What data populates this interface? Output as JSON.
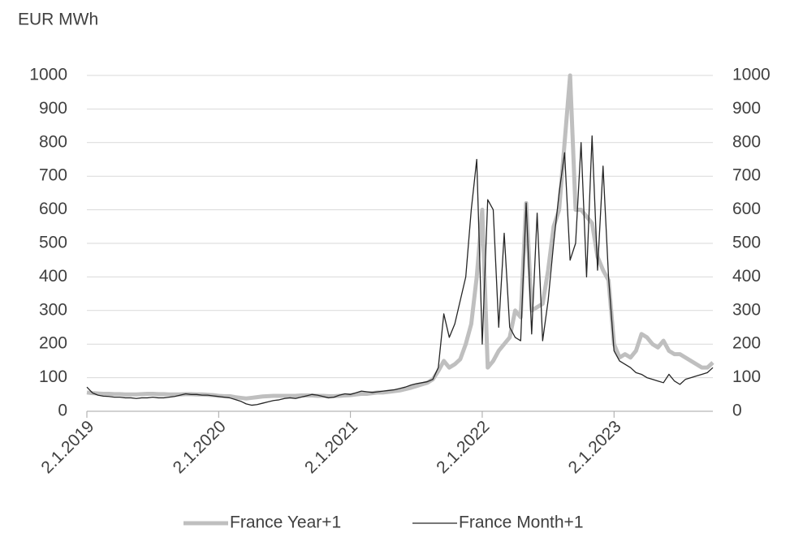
{
  "chart_data": {
    "type": "line",
    "title": "EUR MWh",
    "categories": [
      "2.1.2019",
      null,
      null,
      null,
      null,
      null,
      null,
      null,
      null,
      null,
      null,
      null,
      null,
      null,
      null,
      null,
      null,
      null,
      null,
      null,
      null,
      null,
      null,
      null,
      "2.1.2020",
      null,
      null,
      null,
      null,
      null,
      null,
      null,
      null,
      null,
      null,
      null,
      null,
      null,
      null,
      null,
      null,
      null,
      null,
      null,
      null,
      null,
      null,
      null,
      "2.1.2021",
      null,
      null,
      null,
      null,
      null,
      null,
      null,
      null,
      null,
      null,
      null,
      null,
      null,
      null,
      null,
      null,
      null,
      null,
      null,
      null,
      null,
      null,
      null,
      "2.1.2022",
      null,
      null,
      null,
      null,
      null,
      null,
      null,
      null,
      null,
      null,
      null,
      null,
      null,
      null,
      null,
      null,
      null,
      null,
      null,
      null,
      null,
      null,
      null,
      "2.1.2023",
      null,
      null,
      null,
      null,
      null,
      null,
      null,
      null,
      null,
      null,
      null,
      null,
      null,
      null,
      null,
      null,
      null,
      null
    ],
    "series": [
      {
        "name": "France Year+1",
        "color": "#bfbfbf",
        "width": 5,
        "values": [
          56,
          54,
          53,
          52,
          52,
          51,
          51,
          50,
          50,
          50,
          51,
          52,
          52,
          51,
          51,
          50,
          50,
          50,
          51,
          51,
          50,
          50,
          49,
          48,
          46,
          45,
          45,
          42,
          40,
          38,
          40,
          42,
          44,
          45,
          46,
          46,
          46,
          46,
          46,
          47,
          47,
          47,
          46,
          46,
          45,
          45,
          46,
          47,
          48,
          50,
          52,
          52,
          54,
          56,
          56,
          58,
          60,
          62,
          66,
          70,
          75,
          80,
          85,
          95,
          120,
          150,
          130,
          140,
          155,
          200,
          260,
          400,
          600,
          130,
          150,
          180,
          200,
          220,
          300,
          280,
          620,
          300,
          310,
          320,
          420,
          550,
          600,
          800,
          1000,
          600,
          600,
          580,
          560,
          460,
          420,
          390,
          200,
          160,
          170,
          160,
          180,
          230,
          220,
          200,
          190,
          210,
          180,
          170,
          170,
          160,
          150,
          140,
          130,
          130,
          145
        ]
      },
      {
        "name": "France Month+1",
        "color": "#262626",
        "width": 1.3,
        "values": [
          72,
          55,
          48,
          45,
          44,
          42,
          42,
          40,
          40,
          38,
          40,
          40,
          42,
          40,
          40,
          42,
          44,
          48,
          52,
          50,
          50,
          48,
          48,
          46,
          44,
          42,
          40,
          35,
          30,
          22,
          18,
          20,
          24,
          28,
          32,
          34,
          38,
          40,
          38,
          42,
          46,
          50,
          48,
          44,
          40,
          42,
          48,
          52,
          50,
          55,
          60,
          58,
          56,
          58,
          60,
          62,
          64,
          68,
          72,
          78,
          82,
          85,
          88,
          95,
          130,
          290,
          220,
          260,
          330,
          400,
          600,
          750,
          200,
          630,
          600,
          250,
          530,
          250,
          220,
          210,
          620,
          230,
          590,
          210,
          330,
          500,
          650,
          770,
          450,
          500,
          800,
          400,
          820,
          420,
          730,
          400,
          180,
          150,
          140,
          130,
          115,
          110,
          100,
          95,
          90,
          85,
          110,
          90,
          80,
          95,
          100,
          105,
          110,
          115,
          130
        ]
      }
    ],
    "ylim": [
      0,
      1000
    ],
    "yticks": [
      0,
      100,
      200,
      300,
      400,
      500,
      600,
      700,
      800,
      900,
      1000
    ],
    "y2lim": [
      0,
      1000
    ],
    "y2ticks": [
      0,
      100,
      200,
      300,
      400,
      500,
      600,
      700,
      800,
      900,
      1000
    ],
    "grid": true,
    "legend": "bottom"
  }
}
